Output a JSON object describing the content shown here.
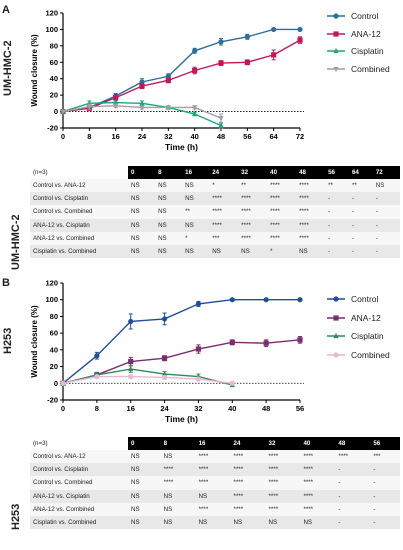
{
  "panels": [
    {
      "letter": "A",
      "cell_line": "UM-HMC-2",
      "n_label": "(n=3)",
      "chart": {
        "type": "line",
        "ylabel": "Wound closure (%)",
        "xlabel": "Time (h)",
        "x": [
          0,
          8,
          16,
          24,
          32,
          40,
          48,
          56,
          64,
          72
        ],
        "xlim": [
          0,
          72
        ],
        "ylim": [
          -20,
          120
        ],
        "yticks": [
          -20,
          0,
          20,
          40,
          60,
          80,
          100,
          120
        ],
        "series": [
          {
            "name": "Control",
            "color": "#2a6f9e",
            "marker": "circle",
            "x": [
              0,
              8,
              16,
              24,
              32,
              40,
              48,
              56,
              64,
              72
            ],
            "values": [
              0,
              5,
              19,
              36,
              43,
              74,
              85,
              91,
              100,
              100
            ],
            "errors": [
              0,
              2,
              3,
              4,
              3,
              3,
              4,
              3,
              1,
              1
            ]
          },
          {
            "name": "ANA-12",
            "color": "#c2185b",
            "marker": "square",
            "x": [
              0,
              8,
              16,
              24,
              32,
              40,
              48,
              56,
              64,
              72
            ],
            "values": [
              0,
              4,
              17,
              31,
              38,
              50,
              59,
              60,
              69,
              87
            ],
            "errors": [
              0,
              2,
              3,
              3,
              3,
              4,
              3,
              3,
              6,
              4
            ]
          },
          {
            "name": "Cisplatin",
            "color": "#1aa87a",
            "marker": "triangle",
            "x": [
              0,
              8,
              16,
              24,
              32,
              40,
              48
            ],
            "values": [
              0,
              10,
              11,
              10,
              5,
              -3,
              -17
            ],
            "errors": [
              0,
              3,
              2,
              3,
              2,
              2,
              3
            ]
          },
          {
            "name": "Combined",
            "color": "#a0a0a0",
            "marker": "triangle-down",
            "x": [
              0,
              8,
              16,
              24,
              32,
              40,
              48
            ],
            "values": [
              0,
              6,
              7,
              5,
              5,
              5,
              -8
            ],
            "errors": [
              0,
              3,
              2,
              2,
              2,
              2,
              5
            ]
          }
        ]
      },
      "table": {
        "columns": [
          "0",
          "8",
          "16",
          "24",
          "32",
          "40",
          "48",
          "56",
          "64",
          "72"
        ],
        "rows": [
          {
            "label": "Control vs. ANA-12",
            "cells": [
              "NS",
              "NS",
              "NS",
              "*",
              "**",
              "****",
              "****",
              "**",
              "**",
              "NS"
            ]
          },
          {
            "label": "Control vs. Cisplatin",
            "cells": [
              "NS",
              "NS",
              "NS",
              "****",
              "****",
              "****",
              "****",
              "-",
              "-",
              "-"
            ]
          },
          {
            "label": "Control vs. Combined",
            "cells": [
              "NS",
              "NS",
              "**",
              "****",
              "****",
              "****",
              "****",
              "-",
              "-",
              "-"
            ]
          },
          {
            "label": "ANA-12 vs. Cisplatin",
            "cells": [
              "NS",
              "NS",
              "NS",
              "****",
              "****",
              "****",
              "****",
              "-",
              "-",
              "-"
            ]
          },
          {
            "label": "ANA-12 vs. Combined",
            "cells": [
              "NS",
              "NS",
              "*",
              "***",
              "****",
              "****",
              "****",
              "-",
              "-",
              "-"
            ]
          },
          {
            "label": "Cisplatin vs. Combined",
            "cells": [
              "NS",
              "NS",
              "NS",
              "NS",
              "NS",
              "*",
              "NS",
              "-",
              "-",
              "-"
            ]
          }
        ]
      }
    },
    {
      "letter": "B",
      "cell_line": "H253",
      "n_label": "(n=3)",
      "chart": {
        "type": "line",
        "ylabel": "Wound closure (%)",
        "xlabel": "Time (h)",
        "x": [
          0,
          8,
          16,
          24,
          32,
          40,
          48,
          56
        ],
        "xlim": [
          0,
          56
        ],
        "ylim": [
          -20,
          120
        ],
        "yticks": [
          -20,
          0,
          20,
          40,
          60,
          80,
          100,
          120
        ],
        "series": [
          {
            "name": "Control",
            "color": "#1f4e9b",
            "marker": "circle",
            "x": [
              0,
              8,
              16,
              24,
              32,
              40,
              48,
              56
            ],
            "values": [
              0,
              33,
              74,
              77,
              95,
              100,
              100,
              100
            ],
            "errors": [
              0,
              4,
              9,
              7,
              3,
              1,
              1,
              1
            ]
          },
          {
            "name": "ANA-12",
            "color": "#7b2d6e",
            "marker": "square",
            "x": [
              0,
              8,
              16,
              24,
              32,
              40,
              48,
              56
            ],
            "values": [
              0,
              10,
              26,
              30,
              41,
              49,
              48,
              52
            ],
            "errors": [
              0,
              3,
              5,
              3,
              5,
              3,
              4,
              4
            ]
          },
          {
            "name": "Cisplatin",
            "color": "#2e8b57",
            "marker": "triangle",
            "x": [
              0,
              8,
              16,
              24,
              32,
              40
            ],
            "values": [
              0,
              10,
              17,
              11,
              8,
              -2
            ],
            "errors": [
              0,
              3,
              4,
              3,
              3,
              2
            ]
          },
          {
            "name": "Combined",
            "color": "#e7b8d8",
            "marker": "circle",
            "x": [
              0,
              8,
              16,
              24,
              32,
              40
            ],
            "values": [
              0,
              8,
              8,
              7,
              5,
              0
            ],
            "errors": [
              0,
              2,
              2,
              2,
              2,
              2
            ]
          }
        ]
      },
      "table": {
        "columns": [
          "0",
          "8",
          "16",
          "24",
          "32",
          "40",
          "48",
          "56"
        ],
        "rows": [
          {
            "label": "Control vs. ANA-12",
            "cells": [
              "NS",
              "NS",
              "****",
              "****",
              "****",
              "****",
              "****",
              "***"
            ]
          },
          {
            "label": "Control vs. Cisplatin",
            "cells": [
              "NS",
              "****",
              "****",
              "****",
              "****",
              "****",
              "-",
              "-"
            ]
          },
          {
            "label": "Control vs. Combined",
            "cells": [
              "NS",
              "****",
              "****",
              "****",
              "****",
              "****",
              "-",
              "-"
            ]
          },
          {
            "label": "ANA-12 vs. Cisplatin",
            "cells": [
              "NS",
              "NS",
              "NS",
              "****",
              "****",
              "****",
              "-",
              "-"
            ]
          },
          {
            "label": "ANA-12 vs. Combined",
            "cells": [
              "NS",
              "NS",
              "****",
              "****",
              "****",
              "****",
              "-",
              "-"
            ]
          },
          {
            "label": "Cisplatin vs. Combined",
            "cells": [
              "NS",
              "NS",
              "NS",
              "NS",
              "NS",
              "NS",
              "-",
              "-"
            ]
          }
        ]
      }
    }
  ]
}
